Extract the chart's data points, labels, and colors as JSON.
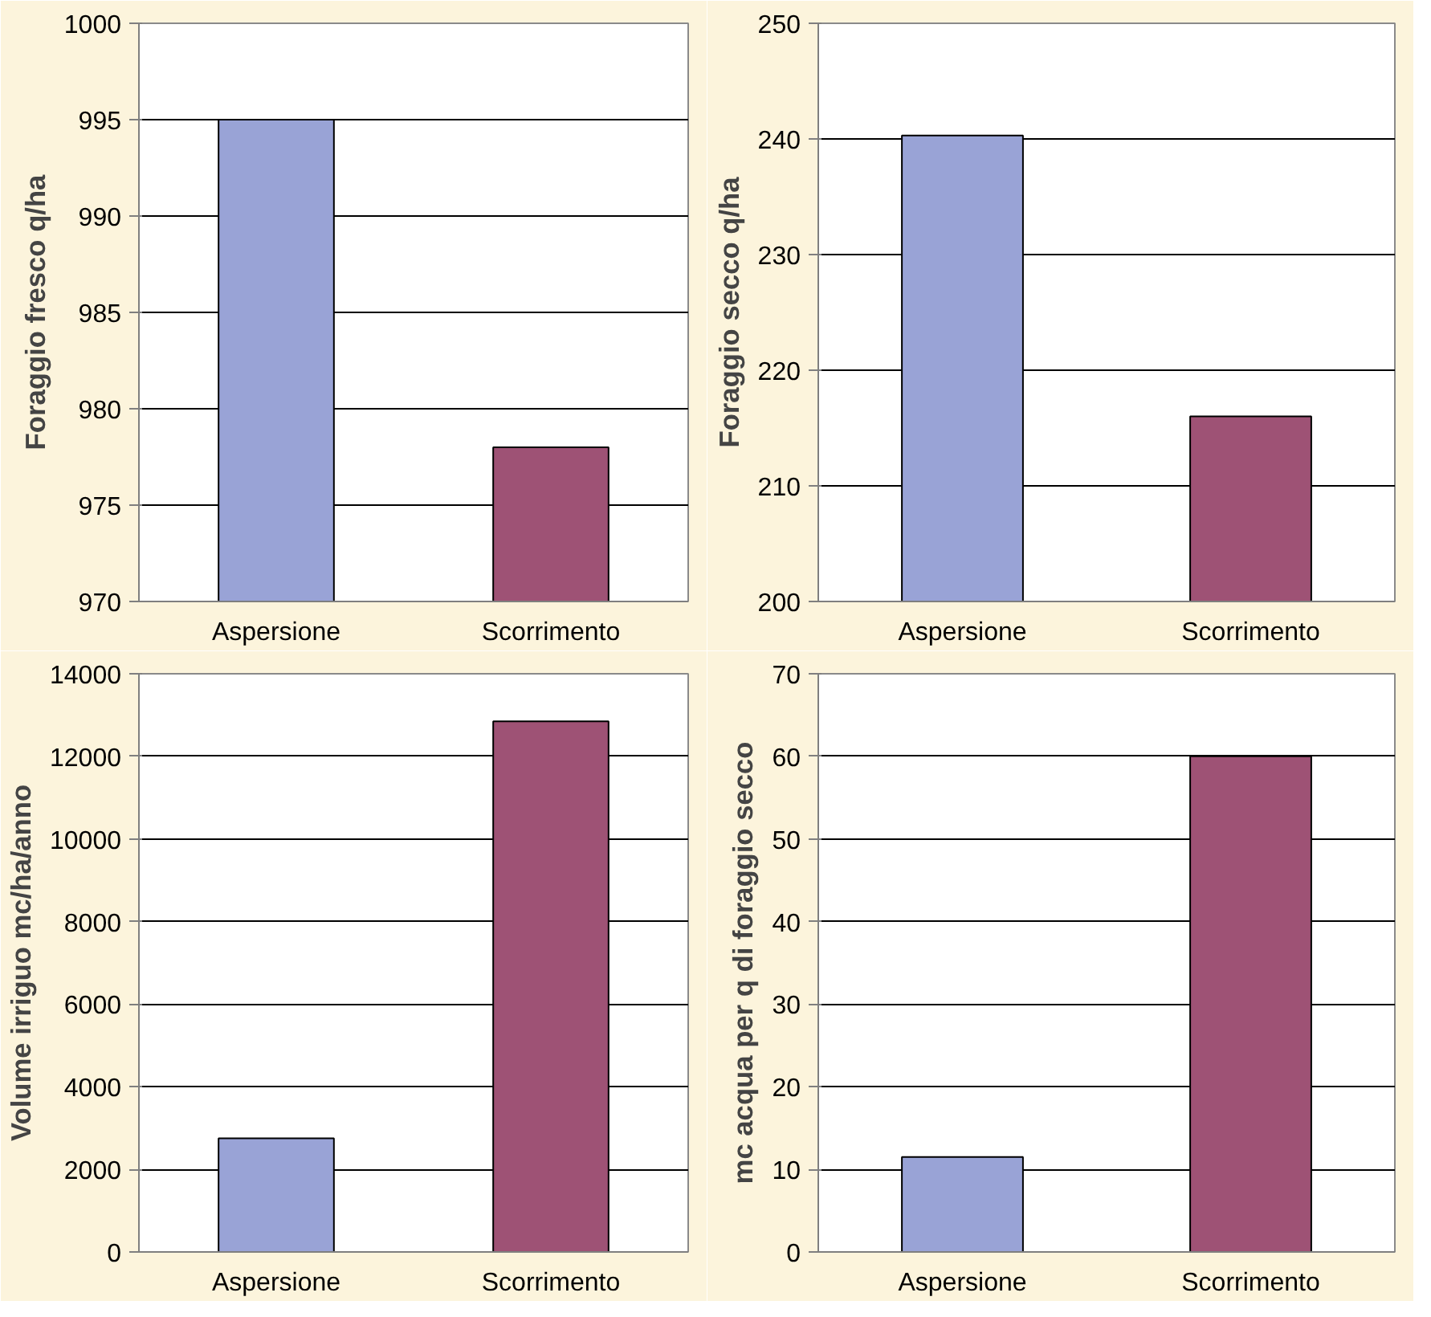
{
  "chart_data": [
    {
      "type": "bar",
      "ylabel": "Foraggio fresco q/ha",
      "categories": [
        "Aspersione",
        "Scorrimento"
      ],
      "values": [
        995,
        978
      ],
      "colors": [
        "#99a3d6",
        "#9e5275"
      ],
      "ylim": [
        970,
        1000
      ],
      "yticks": [
        970,
        975,
        980,
        985,
        990,
        995,
        1000
      ],
      "grid": "y"
    },
    {
      "type": "bar",
      "ylabel": "Foraggio secco q/ha",
      "categories": [
        "Aspersione",
        "Scorrimento"
      ],
      "values": [
        240.3,
        216
      ],
      "colors": [
        "#99a3d6",
        "#9e5275"
      ],
      "ylim": [
        200,
        250
      ],
      "yticks": [
        200,
        210,
        220,
        230,
        240,
        250
      ],
      "grid": "y"
    },
    {
      "type": "bar",
      "ylabel": "Volume irriguo mc/ha/anno",
      "categories": [
        "Aspersione",
        "Scorrimento"
      ],
      "values": [
        2750,
        12850
      ],
      "colors": [
        "#99a3d6",
        "#9e5275"
      ],
      "ylim": [
        0,
        14000
      ],
      "yticks": [
        0,
        2000,
        4000,
        6000,
        8000,
        10000,
        12000,
        14000
      ],
      "grid": "y"
    },
    {
      "type": "bar",
      "ylabel": "mc acqua per q di foraggio secco",
      "categories": [
        "Aspersione",
        "Scorrimento"
      ],
      "values": [
        11.5,
        60
      ],
      "colors": [
        "#99a3d6",
        "#9e5275"
      ],
      "ylim": [
        0,
        70
      ],
      "yticks": [
        0,
        10,
        20,
        30,
        40,
        50,
        60,
        70
      ],
      "grid": "y"
    }
  ]
}
